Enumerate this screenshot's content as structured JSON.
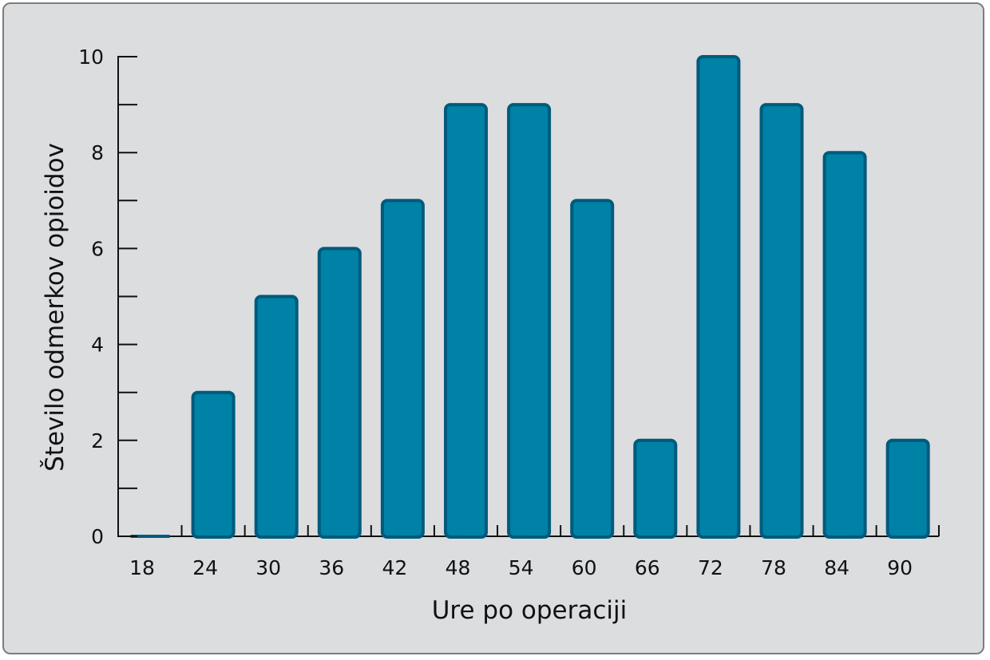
{
  "colors": {
    "bar_fill": "#0081a6",
    "bar_stroke": "#005a7c",
    "background": "#dcdddf"
  },
  "chart_data": {
    "type": "bar",
    "categories": [
      "18",
      "24",
      "30",
      "36",
      "42",
      "48",
      "54",
      "60",
      "66",
      "72",
      "78",
      "84",
      "90"
    ],
    "values": [
      0,
      3,
      5,
      6,
      7,
      9,
      9,
      7,
      2,
      10,
      9,
      8,
      2
    ],
    "title": "",
    "xlabel": "Ure po operaciji",
    "ylabel": "Število odmerkov opioidov",
    "ylim": [
      0,
      10
    ],
    "yticks_labeled": [
      "0",
      "2",
      "4",
      "6",
      "8",
      "10"
    ],
    "yticks_minor": [
      1,
      3,
      5,
      7,
      9
    ],
    "grid": false,
    "legend": "none"
  }
}
